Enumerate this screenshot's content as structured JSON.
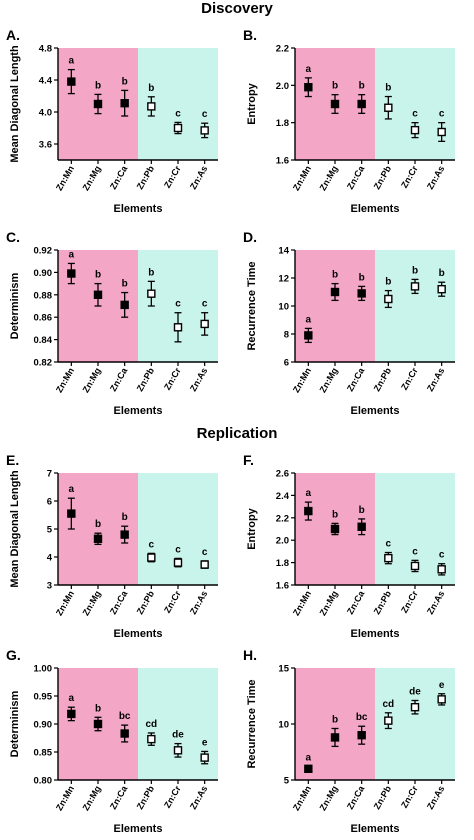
{
  "sections": {
    "discovery": "Discovery",
    "replication": "Replication"
  },
  "colors": {
    "pink": "#f4a6c6",
    "cyan": "#c9f4ec",
    "filled_marker": "#000000",
    "open_marker": "#ffffff"
  },
  "chart_data": [
    {
      "panel": "A.",
      "type": "scatter",
      "categories": [
        "Zn:Mn",
        "Zn:Mg",
        "Zn:Ca",
        "Zn:Pb",
        "Zn:Cr",
        "Zn:As"
      ],
      "xlabel": "Elements",
      "ylabel": "Mean Diagonal Length",
      "ylim": [
        3.4,
        4.8
      ],
      "yticks": [
        "3.6",
        "4.0",
        "4.4",
        "4.8"
      ],
      "values": [
        4.38,
        4.1,
        4.11,
        4.07,
        3.8,
        3.77
      ],
      "err": [
        0.15,
        0.12,
        0.16,
        0.12,
        0.07,
        0.09
      ],
      "letters": [
        "a",
        "b",
        "b",
        "b",
        "c",
        "c"
      ],
      "filled": [
        true,
        true,
        true,
        false,
        false,
        false
      ],
      "pink_count": 3
    },
    {
      "panel": "B.",
      "type": "scatter",
      "categories": [
        "Zn:Mn",
        "Zn:Mg",
        "Zn:Ca",
        "Zn:Pb",
        "Zn:Cr",
        "Zn:As"
      ],
      "xlabel": "Elements",
      "ylabel": "Entropy",
      "ylim": [
        1.6,
        2.2
      ],
      "yticks": [
        "1.6",
        "1.8",
        "2.0",
        "2.2"
      ],
      "values": [
        1.99,
        1.9,
        1.9,
        1.88,
        1.76,
        1.75
      ],
      "err": [
        0.05,
        0.05,
        0.05,
        0.06,
        0.04,
        0.05
      ],
      "letters": [
        "a",
        "b",
        "b",
        "b",
        "c",
        "c"
      ],
      "filled": [
        true,
        true,
        true,
        false,
        false,
        false
      ],
      "pink_count": 3
    },
    {
      "panel": "C.",
      "type": "scatter",
      "categories": [
        "Zn:Mn",
        "Zn:Mg",
        "Zn:Ca",
        "Zn:Pb",
        "Zn:Cr",
        "Zn:As"
      ],
      "xlabel": "Elements",
      "ylabel": "Determinism",
      "ylim": [
        0.82,
        0.92
      ],
      "yticks": [
        "0.82",
        "0.84",
        "0.86",
        "0.88",
        "0.90",
        "0.92"
      ],
      "values": [
        0.899,
        0.88,
        0.871,
        0.881,
        0.851,
        0.854
      ],
      "err": [
        0.009,
        0.01,
        0.011,
        0.011,
        0.013,
        0.01
      ],
      "letters": [
        "a",
        "b",
        "b",
        "b",
        "c",
        "c"
      ],
      "filled": [
        true,
        true,
        true,
        false,
        false,
        false
      ],
      "pink_count": 3
    },
    {
      "panel": "D.",
      "type": "scatter",
      "categories": [
        "Zn:Mn",
        "Zn:Mg",
        "Zn:Ca",
        "Zn:Pb",
        "Zn:Cr",
        "Zn:As"
      ],
      "xlabel": "Elements",
      "ylabel": "Recurrence Time",
      "ylim": [
        6,
        14
      ],
      "yticks": [
        "6",
        "8",
        "10",
        "12",
        "14"
      ],
      "values": [
        7.9,
        11.0,
        10.9,
        10.5,
        11.4,
        11.2
      ],
      "err": [
        0.5,
        0.6,
        0.5,
        0.6,
        0.5,
        0.5
      ],
      "letters": [
        "a",
        "b",
        "b",
        "b",
        "b",
        "b"
      ],
      "filled": [
        true,
        true,
        true,
        false,
        false,
        false
      ],
      "pink_count": 3
    },
    {
      "panel": "E.",
      "type": "scatter",
      "categories": [
        "Zn:Mn",
        "Zn:Mg",
        "Zn:Ca",
        "Zn:Pb",
        "Zn:Cr",
        "Zn:As"
      ],
      "xlabel": "Elements",
      "ylabel": "Mean Diagonal Length",
      "ylim": [
        3,
        7
      ],
      "yticks": [
        "3",
        "4",
        "5",
        "6",
        "7"
      ],
      "values": [
        5.55,
        4.65,
        4.8,
        3.98,
        3.8,
        3.73
      ],
      "err": [
        0.55,
        0.2,
        0.3,
        0.15,
        0.15,
        0.13
      ],
      "letters": [
        "a",
        "b",
        "b",
        "c",
        "c",
        "c"
      ],
      "filled": [
        true,
        true,
        true,
        false,
        false,
        false
      ],
      "pink_count": 3
    },
    {
      "panel": "F.",
      "type": "scatter",
      "categories": [
        "Zn:Mn",
        "Zn:Mg",
        "Zn:Ca",
        "Zn:Pb",
        "Zn:Cr",
        "Zn:As"
      ],
      "xlabel": "Elements",
      "ylabel": "Entropy",
      "ylim": [
        1.6,
        2.6
      ],
      "yticks": [
        "1.6",
        "1.8",
        "2.0",
        "2.2",
        "2.4",
        "2.6"
      ],
      "values": [
        2.26,
        2.1,
        2.12,
        1.84,
        1.77,
        1.74
      ],
      "err": [
        0.08,
        0.05,
        0.07,
        0.05,
        0.05,
        0.05
      ],
      "letters": [
        "a",
        "b",
        "b",
        "c",
        "c",
        "c"
      ],
      "filled": [
        true,
        true,
        true,
        false,
        false,
        false
      ],
      "pink_count": 3
    },
    {
      "panel": "G.",
      "type": "scatter",
      "categories": [
        "Zn:Mn",
        "Zn:Mg",
        "Zn:Ca",
        "Zn:Pb",
        "Zn:Cr",
        "Zn:As"
      ],
      "xlabel": "Elements",
      "ylabel": "Determinism",
      "ylim": [
        0.8,
        1.0
      ],
      "yticks": [
        "0.80",
        "0.85",
        "0.90",
        "0.95",
        "1.00"
      ],
      "values": [
        0.918,
        0.9,
        0.883,
        0.873,
        0.853,
        0.84
      ],
      "err": [
        0.012,
        0.012,
        0.015,
        0.011,
        0.012,
        0.011
      ],
      "letters": [
        "a",
        "b",
        "bc",
        "cd",
        "de",
        "e"
      ],
      "filled": [
        true,
        true,
        true,
        false,
        false,
        false
      ],
      "pink_count": 3
    },
    {
      "panel": "H.",
      "type": "scatter",
      "categories": [
        "Zn:Mn",
        "Zn:Mg",
        "Zn:Ca",
        "Zn:Pb",
        "Zn:Cr",
        "Zn:As"
      ],
      "xlabel": "Elements",
      "ylabel": "Recurrence Time",
      "ylim": [
        5,
        15
      ],
      "yticks": [
        "5",
        "10",
        "15"
      ],
      "values": [
        6.0,
        8.8,
        9.0,
        10.3,
        11.5,
        12.2
      ],
      "err": [
        0.2,
        0.8,
        0.8,
        0.7,
        0.6,
        0.5
      ],
      "letters": [
        "a",
        "b",
        "bc",
        "cd",
        "de",
        "e"
      ],
      "filled": [
        true,
        true,
        true,
        false,
        false,
        false
      ],
      "pink_count": 3
    }
  ]
}
